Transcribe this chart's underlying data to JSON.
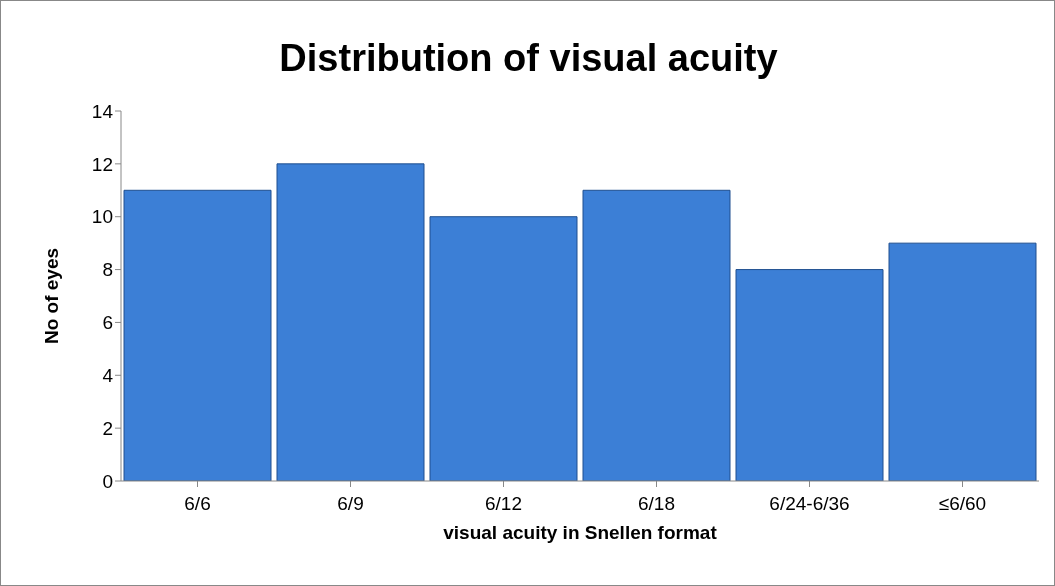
{
  "chart_data": {
    "type": "bar",
    "title": "Distribution of visual acuity",
    "xlabel": "visual acuity in Snellen format",
    "ylabel": "No of eyes",
    "categories": [
      "6/6",
      "6/9",
      "6/12",
      "6/18",
      "6/24-6/36",
      "≤6/60"
    ],
    "values": [
      11,
      12,
      10,
      11,
      8,
      9
    ],
    "color": "#3c7fd6",
    "ylim": [
      0,
      14
    ],
    "yticks": [
      0,
      2,
      4,
      6,
      8,
      10,
      12,
      14
    ],
    "grid": false
  }
}
